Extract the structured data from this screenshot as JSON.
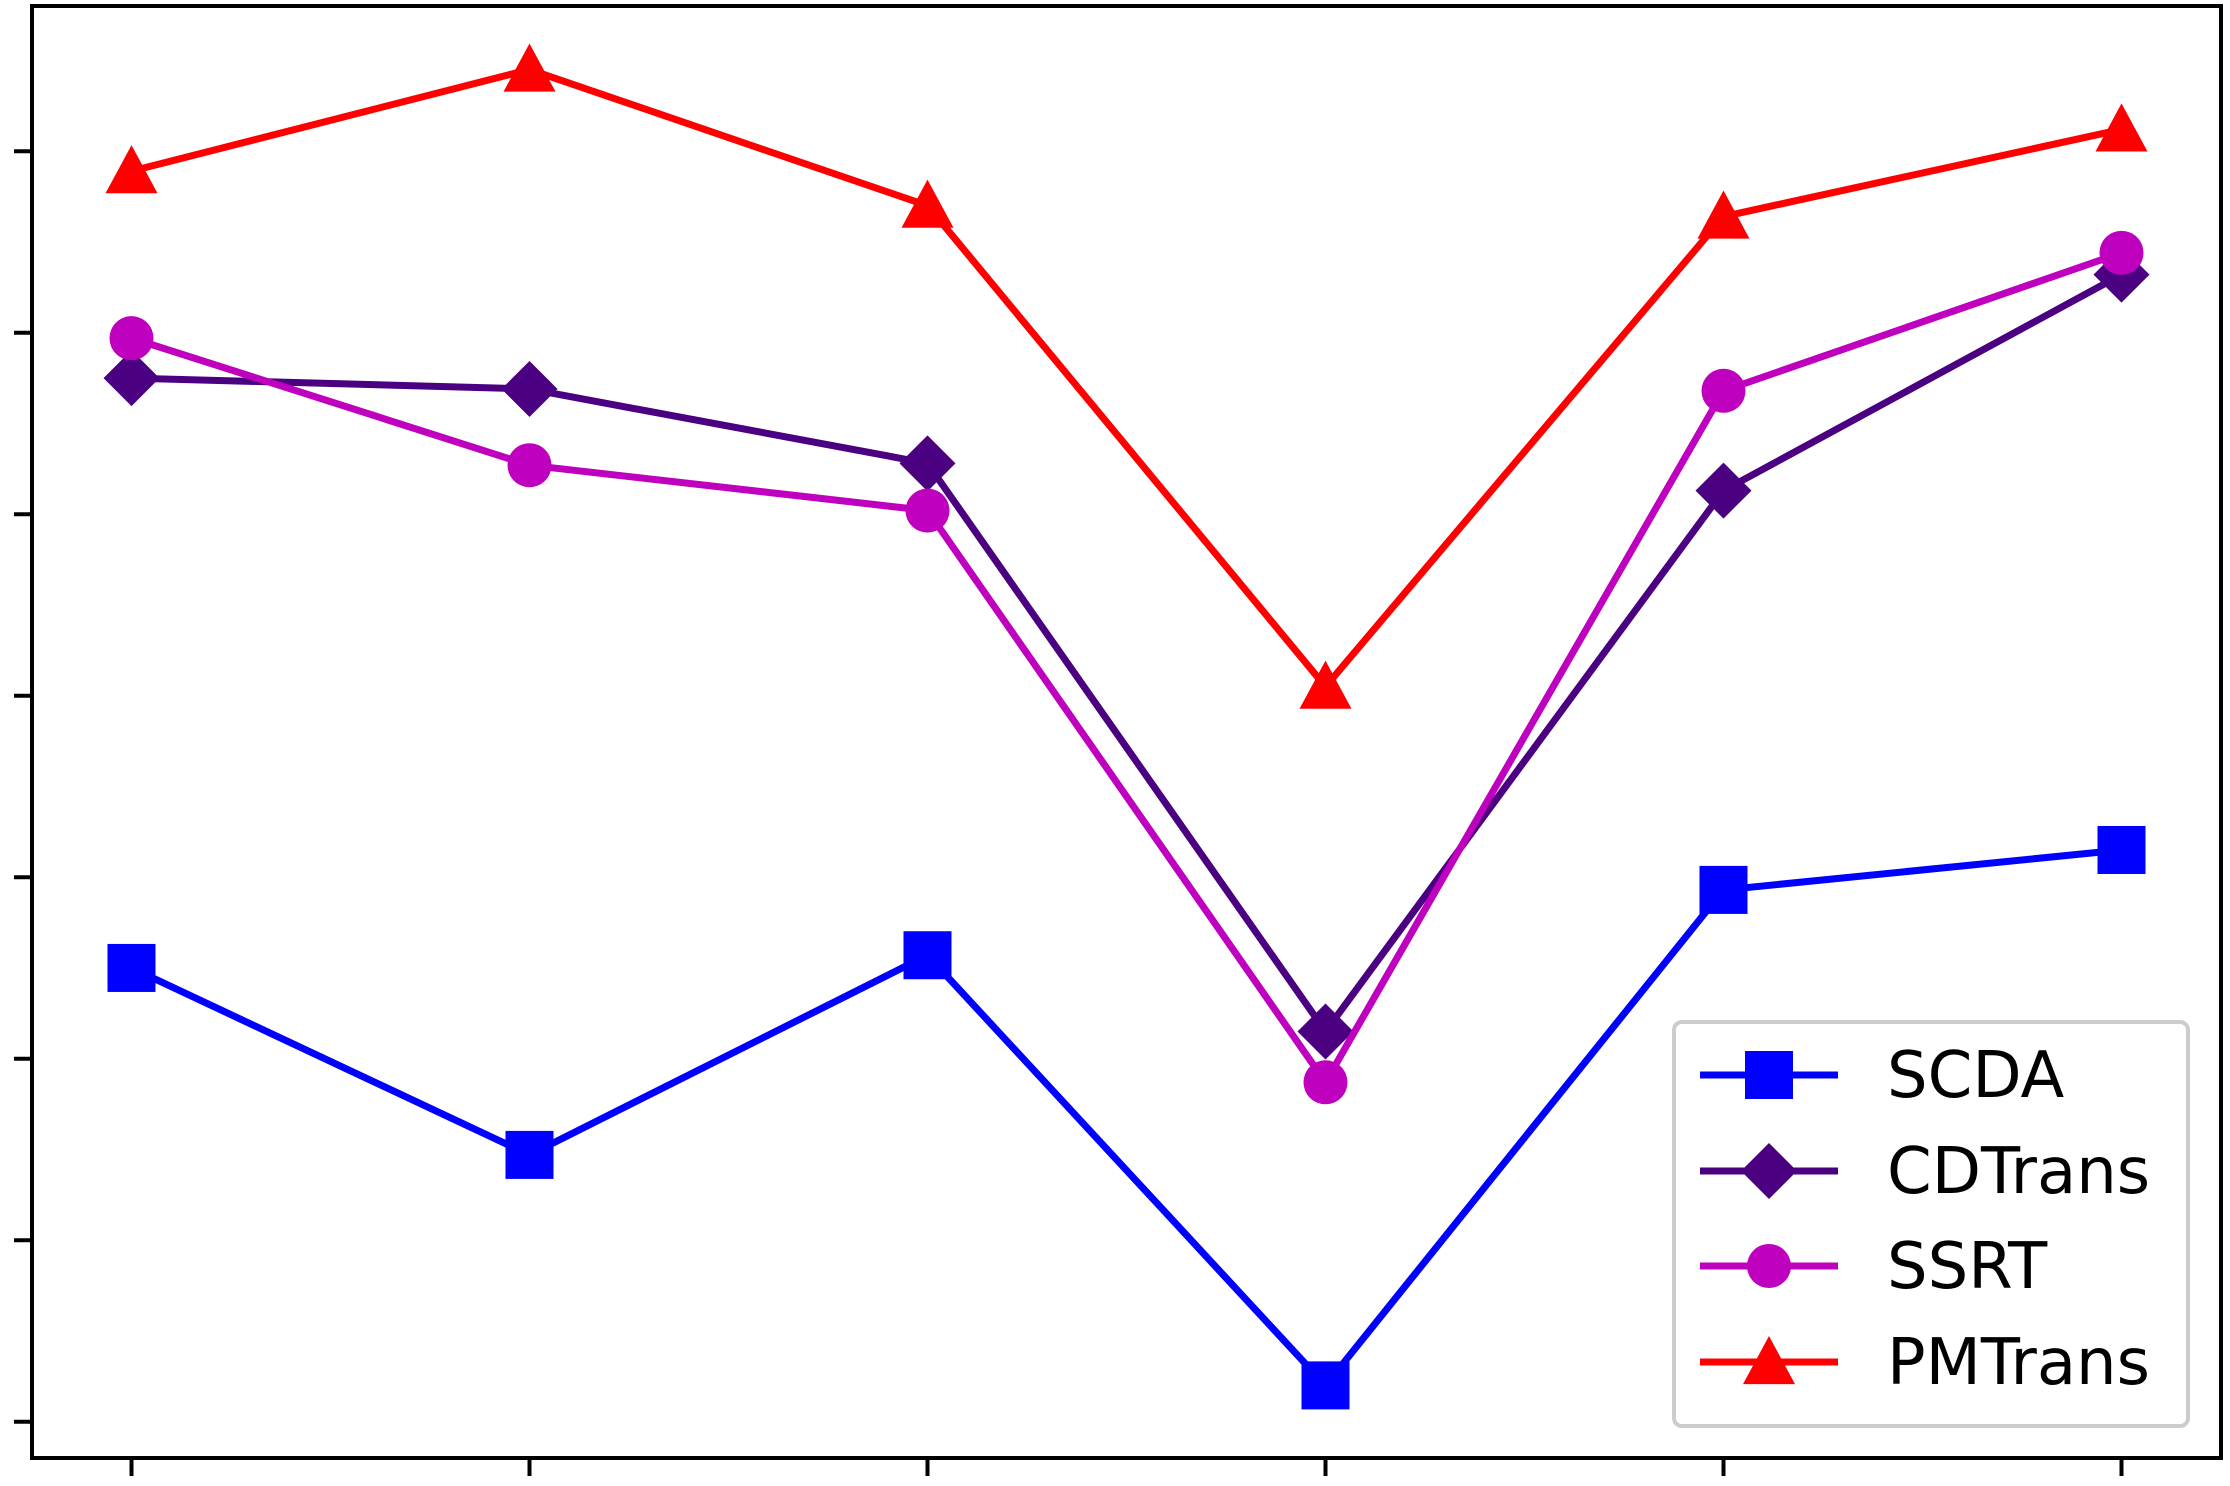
{
  "chart_data": {
    "type": "line",
    "title": "",
    "xlabel": "",
    "ylabel": "",
    "x": [
      0,
      1,
      2,
      3,
      4,
      5
    ],
    "ylim": [
      -0.2,
      7.8
    ],
    "grid": false,
    "legend_position": "lower-right",
    "series": [
      {
        "name": "SCDA",
        "color": "#0000ff",
        "marker": "square",
        "values": [
          2.5,
          1.47,
          2.57,
          0.2,
          2.93,
          3.15
        ]
      },
      {
        "name": "CDTrans",
        "color": "#4b0082",
        "marker": "diamond",
        "values": [
          5.75,
          5.69,
          5.28,
          2.15,
          5.13,
          6.32
        ]
      },
      {
        "name": "SSRT",
        "color": "#bf00bf",
        "marker": "circle",
        "values": [
          5.97,
          5.27,
          5.02,
          1.87,
          5.68,
          6.44
        ]
      },
      {
        "name": "PMTrans",
        "color": "#ff0000",
        "marker": "triangle",
        "values": [
          6.89,
          7.45,
          6.7,
          4.05,
          6.64,
          7.12
        ]
      }
    ]
  }
}
